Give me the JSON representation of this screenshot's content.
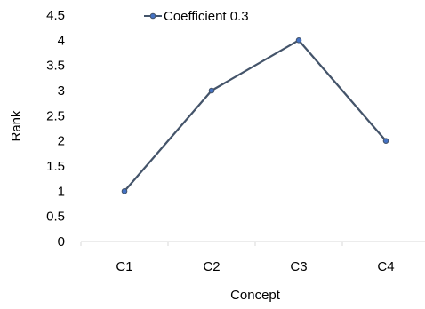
{
  "chart_data": {
    "type": "line",
    "title": "",
    "xlabel": "Concept",
    "ylabel": "Rank",
    "categories": [
      "C1",
      "C2",
      "C3",
      "C4"
    ],
    "series": [
      {
        "name": "Coefficient 0.3",
        "values": [
          1,
          3,
          4,
          2
        ]
      }
    ],
    "ylim": [
      0,
      4.5
    ],
    "yticks": [
      "0",
      "0.5",
      "1",
      "1.5",
      "2",
      "2.5",
      "3",
      "3.5",
      "4",
      "4.5"
    ],
    "grid": false,
    "legend_position": "top-center",
    "line_color": "#44546A",
    "marker_fill": "#4472C4"
  }
}
